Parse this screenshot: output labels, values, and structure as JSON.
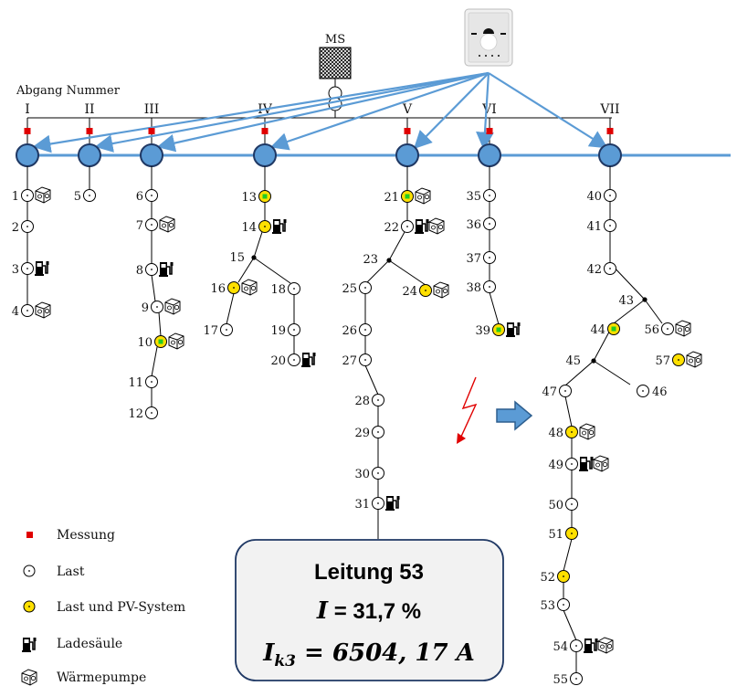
{
  "station": {
    "label": "MS"
  },
  "feeder_header": {
    "label": "Abgang Nummer"
  },
  "feeders": [
    "I",
    "II",
    "III",
    "IV",
    "V",
    "VI",
    "VII"
  ],
  "nodes": [
    "1",
    "2",
    "3",
    "4",
    "5",
    "6",
    "7",
    "8",
    "9",
    "10",
    "11",
    "12",
    "13",
    "14",
    "15",
    "16",
    "17",
    "18",
    "19",
    "20",
    "21",
    "22",
    "23",
    "24",
    "25",
    "26",
    "27",
    "28",
    "29",
    "30",
    "31",
    "35",
    "36",
    "37",
    "38",
    "39",
    "40",
    "41",
    "42",
    "43",
    "44",
    "45",
    "46",
    "47",
    "48",
    "49",
    "50",
    "51",
    "52",
    "53",
    "54",
    "55",
    "56",
    "57"
  ],
  "legend": {
    "measurement": "Messung",
    "load": "Last",
    "load_pv": "Last und PV-System",
    "charger": "Ladesäule",
    "heat_pump": "Wärmepumpe"
  },
  "info_box": {
    "title": "Leitung 53",
    "line1_var": "I",
    "line1_value": " = 31,7 %",
    "line2_var": "I",
    "line2_sub": "k3",
    "line2_value": " = 6504, 17 A"
  },
  "colors": {
    "bus_fill": "#5b9bd5",
    "bus_stroke": "#1f3864",
    "comm_line": "#5b9bd5",
    "measurement": "#e00000",
    "pv_yellow": "#ffe000",
    "pv_green": "#22cc22",
    "fault": "#e00000",
    "info_box_fill": "#f2f2f2",
    "info_box_stroke": "#1f3864"
  }
}
